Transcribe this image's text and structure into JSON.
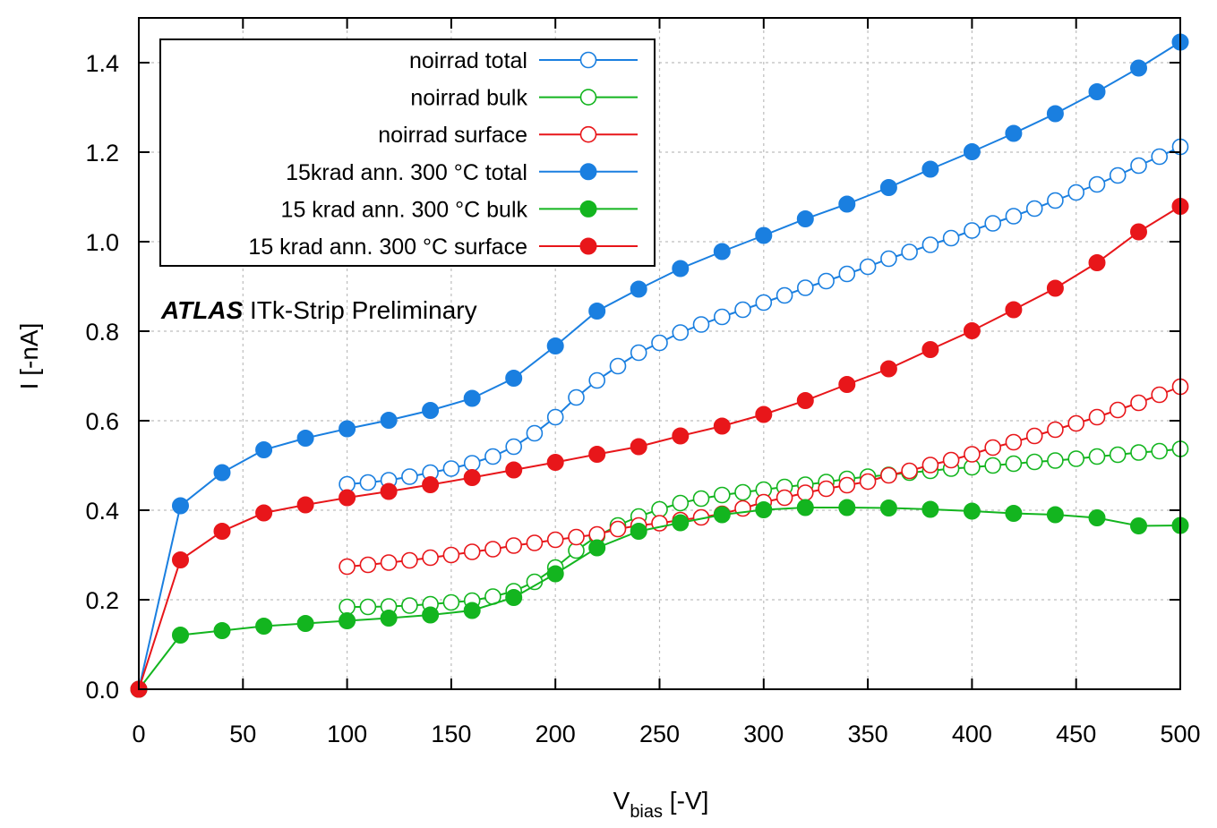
{
  "chart_data": {
    "type": "line",
    "title": "",
    "annotation": {
      "bold_italic": "ATLAS",
      "text": " ITk-Strip Preliminary"
    },
    "xlabel": {
      "main": "V",
      "sub": "bias",
      "unit": " [-V]"
    },
    "ylabel": "I [-nA]",
    "xlim": [
      0,
      500
    ],
    "ylim": [
      0,
      1.5
    ],
    "x_ticks": [
      0,
      50,
      100,
      150,
      200,
      250,
      300,
      350,
      400,
      450,
      500
    ],
    "x_tick_labels": [
      "0",
      "50",
      "100",
      "150",
      "200",
      "250",
      "300",
      "350",
      "400",
      "450",
      "500"
    ],
    "y_ticks": [
      0,
      0.2,
      0.4,
      0.6,
      0.8,
      1.0,
      1.2,
      1.4
    ],
    "y_tick_labels": [
      "0.0",
      "0.2",
      "0.4",
      "0.6",
      "0.8",
      "1.0",
      "1.2",
      "1.4"
    ],
    "grid": true,
    "legend_position": "top-left",
    "series": [
      {
        "name": "noirrad total",
        "color": "#1a7fe0",
        "marker": "open-circle",
        "x": [
          100,
          110,
          120,
          130,
          140,
          150,
          160,
          170,
          180,
          190,
          200,
          210,
          220,
          230,
          240,
          250,
          260,
          270,
          280,
          290,
          300,
          310,
          320,
          330,
          340,
          350,
          360,
          370,
          380,
          390,
          400,
          410,
          420,
          430,
          440,
          450,
          460,
          470,
          480,
          490,
          500
        ],
        "y": [
          0.458,
          0.462,
          0.467,
          0.475,
          0.484,
          0.493,
          0.505,
          0.52,
          0.542,
          0.572,
          0.608,
          0.652,
          0.69,
          0.722,
          0.752,
          0.774,
          0.797,
          0.815,
          0.832,
          0.848,
          0.864,
          0.88,
          0.897,
          0.912,
          0.928,
          0.944,
          0.962,
          0.977,
          0.993,
          1.008,
          1.025,
          1.041,
          1.057,
          1.074,
          1.092,
          1.11,
          1.128,
          1.148,
          1.17,
          1.19,
          1.212
        ]
      },
      {
        "name": "noirrad bulk",
        "color": "#13b51f",
        "marker": "open-circle",
        "x": [
          100,
          110,
          120,
          130,
          140,
          150,
          160,
          170,
          180,
          190,
          200,
          210,
          220,
          230,
          240,
          250,
          260,
          270,
          280,
          290,
          300,
          310,
          320,
          330,
          340,
          350,
          360,
          370,
          380,
          390,
          400,
          410,
          420,
          430,
          440,
          450,
          460,
          470,
          480,
          490,
          500
        ],
        "y": [
          0.184,
          0.184,
          0.185,
          0.187,
          0.19,
          0.194,
          0.198,
          0.207,
          0.219,
          0.24,
          0.272,
          0.31,
          0.342,
          0.366,
          0.386,
          0.402,
          0.416,
          0.426,
          0.434,
          0.44,
          0.446,
          0.452,
          0.457,
          0.463,
          0.47,
          0.475,
          0.479,
          0.484,
          0.488,
          0.493,
          0.496,
          0.5,
          0.504,
          0.508,
          0.511,
          0.515,
          0.52,
          0.524,
          0.529,
          0.532,
          0.537
        ]
      },
      {
        "name": "noirrad surface",
        "color": "#e8161a",
        "marker": "open-circle",
        "x": [
          100,
          110,
          120,
          130,
          140,
          150,
          160,
          170,
          180,
          190,
          200,
          210,
          220,
          230,
          240,
          250,
          260,
          270,
          280,
          290,
          300,
          310,
          320,
          330,
          340,
          350,
          360,
          370,
          380,
          390,
          400,
          410,
          420,
          430,
          440,
          450,
          460,
          470,
          480,
          490,
          500
        ],
        "y": [
          0.274,
          0.278,
          0.283,
          0.288,
          0.294,
          0.3,
          0.307,
          0.313,
          0.321,
          0.327,
          0.334,
          0.34,
          0.346,
          0.358,
          0.366,
          0.371,
          0.378,
          0.384,
          0.392,
          0.404,
          0.418,
          0.428,
          0.439,
          0.448,
          0.456,
          0.464,
          0.478,
          0.488,
          0.501,
          0.512,
          0.525,
          0.54,
          0.552,
          0.566,
          0.58,
          0.594,
          0.608,
          0.624,
          0.64,
          0.658,
          0.676
        ]
      },
      {
        "name": "15krad ann. 300 °C total",
        "color": "#1a7fe0",
        "marker": "filled-circle",
        "x": [
          0,
          20,
          40,
          60,
          80,
          100,
          120,
          140,
          160,
          180,
          200,
          220,
          240,
          260,
          280,
          300,
          320,
          340,
          360,
          380,
          400,
          420,
          440,
          460,
          480,
          500
        ],
        "y": [
          0,
          0.41,
          0.484,
          0.535,
          0.561,
          0.582,
          0.601,
          0.623,
          0.65,
          0.695,
          0.767,
          0.845,
          0.894,
          0.94,
          0.978,
          1.014,
          1.051,
          1.084,
          1.121,
          1.162,
          1.201,
          1.242,
          1.286,
          1.335,
          1.388,
          1.446
        ]
      },
      {
        "name": "15 krad ann. 300 °C bulk",
        "color": "#13b51f",
        "marker": "filled-circle",
        "x": [
          0,
          20,
          40,
          60,
          80,
          100,
          120,
          140,
          160,
          180,
          200,
          220,
          240,
          260,
          280,
          300,
          320,
          340,
          360,
          380,
          400,
          420,
          440,
          460,
          480,
          500
        ],
        "y": [
          0,
          0.121,
          0.131,
          0.141,
          0.147,
          0.153,
          0.159,
          0.166,
          0.176,
          0.205,
          0.258,
          0.316,
          0.353,
          0.372,
          0.39,
          0.401,
          0.406,
          0.406,
          0.405,
          0.402,
          0.398,
          0.393,
          0.39,
          0.383,
          0.365,
          0.366
        ]
      },
      {
        "name": "15 krad ann. 300 °C surface",
        "color": "#e8161a",
        "marker": "filled-circle",
        "x": [
          0,
          20,
          40,
          60,
          80,
          100,
          120,
          140,
          160,
          180,
          200,
          220,
          240,
          260,
          280,
          300,
          320,
          340,
          360,
          380,
          400,
          420,
          440,
          460,
          480,
          500
        ],
        "y": [
          0,
          0.289,
          0.353,
          0.394,
          0.412,
          0.428,
          0.442,
          0.457,
          0.473,
          0.49,
          0.507,
          0.525,
          0.542,
          0.566,
          0.588,
          0.614,
          0.645,
          0.681,
          0.716,
          0.759,
          0.801,
          0.848,
          0.896,
          0.953,
          1.022,
          1.079
        ]
      }
    ]
  }
}
